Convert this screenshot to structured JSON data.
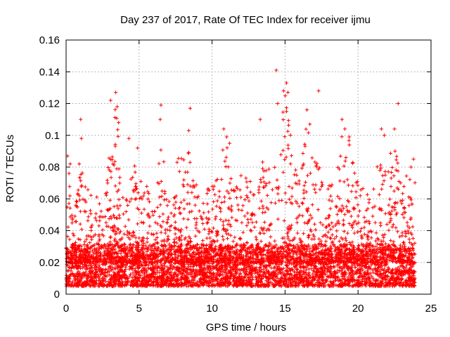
{
  "chart_data": {
    "type": "scatter",
    "title": "Day 237 of 2017, Rate Of TEC Index for receiver ijmu",
    "xlabel": "GPS time / hours",
    "ylabel": "ROTI / TECUs",
    "xlim": [
      0,
      25
    ],
    "ylim": [
      0,
      0.16
    ],
    "x_ticks": [
      "0",
      "5",
      "10",
      "15",
      "20",
      "25"
    ],
    "y_ticks": [
      "0",
      "0.02",
      "0.04",
      "0.06",
      "0.08",
      "0.1",
      "0.12",
      "0.14",
      "0.16"
    ],
    "grid": true,
    "marker": "plus",
    "series_color": "#ff0000",
    "baseline_band": [
      0.005,
      0.03
    ],
    "activity_envelope": [
      [
        0.0,
        0.062
      ],
      [
        0.3,
        0.085
      ],
      [
        0.6,
        0.055
      ],
      [
        1.0,
        0.08
      ],
      [
        1.3,
        0.07
      ],
      [
        1.8,
        0.065
      ],
      [
        2.3,
        0.06
      ],
      [
        2.8,
        0.075
      ],
      [
        3.2,
        0.11
      ],
      [
        3.5,
        0.125
      ],
      [
        3.8,
        0.065
      ],
      [
        4.2,
        0.06
      ],
      [
        4.6,
        0.085
      ],
      [
        5.0,
        0.07
      ],
      [
        5.5,
        0.075
      ],
      [
        6.0,
        0.055
      ],
      [
        6.5,
        0.1
      ],
      [
        7.0,
        0.065
      ],
      [
        7.5,
        0.085
      ],
      [
        8.0,
        0.09
      ],
      [
        8.5,
        0.1
      ],
      [
        9.0,
        0.065
      ],
      [
        9.5,
        0.06
      ],
      [
        10.0,
        0.075
      ],
      [
        10.5,
        0.09
      ],
      [
        11.0,
        0.095
      ],
      [
        11.5,
        0.065
      ],
      [
        12.0,
        0.08
      ],
      [
        12.5,
        0.075
      ],
      [
        13.0,
        0.07
      ],
      [
        13.5,
        0.085
      ],
      [
        14.0,
        0.08
      ],
      [
        14.5,
        0.095
      ],
      [
        15.0,
        0.13
      ],
      [
        15.5,
        0.09
      ],
      [
        16.0,
        0.08
      ],
      [
        16.5,
        0.11
      ],
      [
        17.0,
        0.085
      ],
      [
        17.5,
        0.08
      ],
      [
        18.0,
        0.07
      ],
      [
        18.5,
        0.085
      ],
      [
        19.0,
        0.11
      ],
      [
        19.5,
        0.095
      ],
      [
        20.0,
        0.07
      ],
      [
        20.5,
        0.065
      ],
      [
        21.0,
        0.065
      ],
      [
        21.5,
        0.09
      ],
      [
        22.0,
        0.08
      ],
      [
        22.5,
        0.1
      ],
      [
        23.0,
        0.065
      ],
      [
        23.5,
        0.08
      ],
      [
        23.8,
        0.085
      ]
    ],
    "notable_points": [
      [
        0.1,
        0.087
      ],
      [
        0.2,
        0.076
      ],
      [
        0.9,
        0.082
      ],
      [
        1.0,
        0.11
      ],
      [
        1.05,
        0.098
      ],
      [
        3.05,
        0.122
      ],
      [
        3.4,
        0.127
      ],
      [
        3.5,
        0.118
      ],
      [
        3.6,
        0.108
      ],
      [
        4.3,
        0.098
      ],
      [
        4.9,
        0.092
      ],
      [
        6.5,
        0.119
      ],
      [
        6.45,
        0.11
      ],
      [
        8.5,
        0.117
      ],
      [
        8.4,
        0.103
      ],
      [
        10.8,
        0.104
      ],
      [
        11.0,
        0.099
      ],
      [
        11.2,
        0.095
      ],
      [
        13.3,
        0.11
      ],
      [
        14.4,
        0.141
      ],
      [
        14.5,
        0.12
      ],
      [
        14.9,
        0.128
      ],
      [
        15.1,
        0.133
      ],
      [
        15.2,
        0.127
      ],
      [
        15.1,
        0.115
      ],
      [
        16.5,
        0.116
      ],
      [
        16.7,
        0.107
      ],
      [
        17.3,
        0.128
      ],
      [
        18.9,
        0.11
      ],
      [
        19.1,
        0.104
      ],
      [
        19.4,
        0.099
      ],
      [
        21.6,
        0.104
      ],
      [
        21.8,
        0.1
      ],
      [
        22.5,
        0.104
      ],
      [
        22.75,
        0.12
      ],
      [
        23.8,
        0.085
      ]
    ]
  }
}
